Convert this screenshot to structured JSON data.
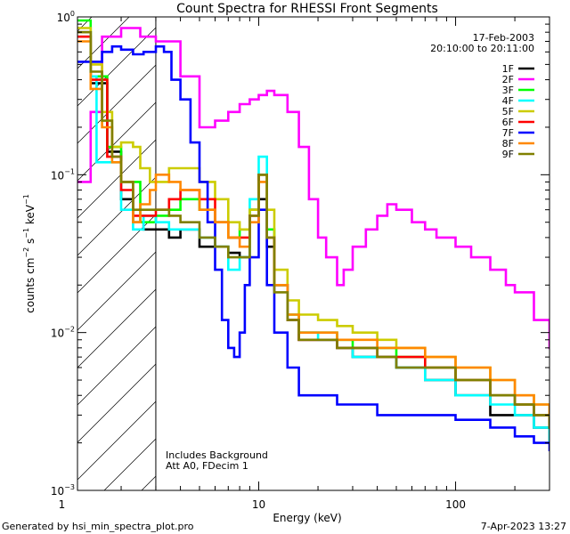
{
  "chart_data": {
    "type": "line",
    "title": "Count Spectra for RHESSI Front Segments",
    "xlabel": "Energy (keV)",
    "ylabel": "counts cm-2 s-1 keV-1",
    "ylabel_parts": {
      "base": "counts cm",
      "e1": "−2",
      "mid1": " s",
      "e2": "−1",
      "mid2": " keV",
      "e3": "−1"
    },
    "x_scale": "log",
    "y_scale": "log",
    "xlim": [
      1.2,
      300
    ],
    "ylim": [
      0.001,
      1.0
    ],
    "x_ticks": [
      {
        "value": 1,
        "label": "1"
      },
      {
        "value": 10,
        "label": "10"
      },
      {
        "value": 100,
        "label": "100"
      }
    ],
    "y_ticks": [
      {
        "value": 0.001,
        "base": "10",
        "exp": "−3"
      },
      {
        "value": 0.01,
        "base": "10",
        "exp": "−2"
      },
      {
        "value": 0.1,
        "base": "10",
        "exp": "−1"
      },
      {
        "value": 1,
        "base": "10",
        "exp": "0"
      }
    ],
    "date": "17-Feb-2003",
    "time_range": "20:10:00 to 20:11:00",
    "hatched_region": {
      "x_from": 1.2,
      "x_to": 3
    },
    "annotations": [
      "Includes Background",
      "Att A0, FDecim 1"
    ],
    "legend_position": "top-right",
    "series": [
      {
        "name": "1F",
        "color": "#000000",
        "points": [
          [
            1.2,
            0.8
          ],
          [
            1.4,
            0.38
          ],
          [
            1.7,
            0.14
          ],
          [
            2.0,
            0.07
          ],
          [
            2.3,
            0.05
          ],
          [
            2.6,
            0.045
          ],
          [
            3.0,
            0.045
          ],
          [
            3.5,
            0.04
          ],
          [
            4,
            0.045
          ],
          [
            5,
            0.035
          ],
          [
            6,
            0.035
          ],
          [
            7,
            0.032
          ],
          [
            8,
            0.03
          ],
          [
            9,
            0.06
          ],
          [
            10,
            0.07
          ],
          [
            11,
            0.035
          ],
          [
            12,
            0.02
          ],
          [
            14,
            0.012
          ],
          [
            16,
            0.009
          ],
          [
            20,
            0.009
          ],
          [
            25,
            0.008
          ],
          [
            30,
            0.007
          ],
          [
            40,
            0.007
          ],
          [
            50,
            0.006
          ],
          [
            70,
            0.005
          ],
          [
            100,
            0.004
          ],
          [
            150,
            0.003
          ],
          [
            200,
            0.003
          ],
          [
            250,
            0.0025
          ],
          [
            300,
            0.002
          ]
        ]
      },
      {
        "name": "2F",
        "color": "#ff00ff",
        "points": [
          [
            1.2,
            0.09
          ],
          [
            1.4,
            0.25
          ],
          [
            1.6,
            0.75
          ],
          [
            2,
            0.85
          ],
          [
            2.5,
            0.75
          ],
          [
            3,
            0.7
          ],
          [
            4,
            0.42
          ],
          [
            5,
            0.2
          ],
          [
            6,
            0.22
          ],
          [
            7,
            0.25
          ],
          [
            8,
            0.28
          ],
          [
            9,
            0.3
          ],
          [
            10,
            0.32
          ],
          [
            11,
            0.34
          ],
          [
            12,
            0.32
          ],
          [
            14,
            0.25
          ],
          [
            16,
            0.15
          ],
          [
            18,
            0.07
          ],
          [
            20,
            0.04
          ],
          [
            22,
            0.03
          ],
          [
            25,
            0.02
          ],
          [
            27,
            0.025
          ],
          [
            30,
            0.035
          ],
          [
            35,
            0.045
          ],
          [
            40,
            0.055
          ],
          [
            45,
            0.065
          ],
          [
            50,
            0.06
          ],
          [
            60,
            0.05
          ],
          [
            70,
            0.045
          ],
          [
            80,
            0.04
          ],
          [
            100,
            0.035
          ],
          [
            120,
            0.03
          ],
          [
            150,
            0.025
          ],
          [
            180,
            0.02
          ],
          [
            200,
            0.018
          ],
          [
            250,
            0.012
          ],
          [
            300,
            0.008
          ]
        ]
      },
      {
        "name": "3F",
        "color": "#00ff00",
        "points": [
          [
            1.2,
            0.95
          ],
          [
            1.4,
            0.42
          ],
          [
            1.7,
            0.15
          ],
          [
            2.0,
            0.09
          ],
          [
            2.5,
            0.05
          ],
          [
            3,
            0.055
          ],
          [
            3.5,
            0.06
          ],
          [
            4,
            0.07
          ],
          [
            5,
            0.06
          ],
          [
            6,
            0.05
          ],
          [
            7,
            0.04
          ],
          [
            8,
            0.045
          ],
          [
            9,
            0.06
          ],
          [
            10,
            0.1
          ],
          [
            11,
            0.045
          ],
          [
            12,
            0.02
          ],
          [
            14,
            0.013
          ],
          [
            16,
            0.01
          ],
          [
            20,
            0.01
          ],
          [
            25,
            0.009
          ],
          [
            30,
            0.008
          ],
          [
            40,
            0.008
          ],
          [
            50,
            0.007
          ],
          [
            70,
            0.006
          ],
          [
            100,
            0.005
          ],
          [
            150,
            0.004
          ],
          [
            200,
            0.0035
          ],
          [
            250,
            0.003
          ],
          [
            300,
            0.0025
          ]
        ]
      },
      {
        "name": "4F",
        "color": "#00ffff",
        "points": [
          [
            1.2,
            0.75
          ],
          [
            1.4,
            0.42
          ],
          [
            1.5,
            0.12
          ],
          [
            1.7,
            0.12
          ],
          [
            2.0,
            0.06
          ],
          [
            2.3,
            0.045
          ],
          [
            2.6,
            0.055
          ],
          [
            3,
            0.05
          ],
          [
            3.5,
            0.045
          ],
          [
            4,
            0.045
          ],
          [
            5,
            0.04
          ],
          [
            6,
            0.035
          ],
          [
            7,
            0.025
          ],
          [
            8,
            0.03
          ],
          [
            9,
            0.07
          ],
          [
            10,
            0.13
          ],
          [
            11,
            0.04
          ],
          [
            12,
            0.02
          ],
          [
            14,
            0.012
          ],
          [
            16,
            0.01
          ],
          [
            20,
            0.009
          ],
          [
            25,
            0.008
          ],
          [
            30,
            0.007
          ],
          [
            40,
            0.007
          ],
          [
            50,
            0.006
          ],
          [
            70,
            0.005
          ],
          [
            100,
            0.004
          ],
          [
            150,
            0.0035
          ],
          [
            200,
            0.003
          ],
          [
            250,
            0.0025
          ],
          [
            300,
            0.002
          ]
        ]
      },
      {
        "name": "5F",
        "color": "#cccc00",
        "points": [
          [
            1.2,
            0.85
          ],
          [
            1.4,
            0.5
          ],
          [
            1.6,
            0.25
          ],
          [
            1.8,
            0.15
          ],
          [
            2.0,
            0.16
          ],
          [
            2.3,
            0.15
          ],
          [
            2.5,
            0.11
          ],
          [
            2.8,
            0.09
          ],
          [
            3,
            0.09
          ],
          [
            3.5,
            0.11
          ],
          [
            4,
            0.11
          ],
          [
            5,
            0.09
          ],
          [
            6,
            0.07
          ],
          [
            7,
            0.05
          ],
          [
            8,
            0.045
          ],
          [
            9,
            0.06
          ],
          [
            10,
            0.1
          ],
          [
            11,
            0.06
          ],
          [
            12,
            0.025
          ],
          [
            14,
            0.016
          ],
          [
            16,
            0.013
          ],
          [
            20,
            0.012
          ],
          [
            25,
            0.011
          ],
          [
            30,
            0.01
          ],
          [
            40,
            0.009
          ],
          [
            50,
            0.008
          ],
          [
            70,
            0.007
          ],
          [
            100,
            0.006
          ],
          [
            150,
            0.005
          ],
          [
            200,
            0.004
          ],
          [
            250,
            0.0035
          ],
          [
            300,
            0.003
          ]
        ]
      },
      {
        "name": "6F",
        "color": "#ff0000",
        "points": [
          [
            1.2,
            0.75
          ],
          [
            1.4,
            0.4
          ],
          [
            1.7,
            0.13
          ],
          [
            2.0,
            0.08
          ],
          [
            2.3,
            0.055
          ],
          [
            2.6,
            0.055
          ],
          [
            3,
            0.06
          ],
          [
            3.5,
            0.07
          ],
          [
            4,
            0.08
          ],
          [
            5,
            0.07
          ],
          [
            6,
            0.05
          ],
          [
            7,
            0.04
          ],
          [
            8,
            0.04
          ],
          [
            9,
            0.055
          ],
          [
            10,
            0.1
          ],
          [
            11,
            0.04
          ],
          [
            12,
            0.02
          ],
          [
            14,
            0.012
          ],
          [
            16,
            0.009
          ],
          [
            20,
            0.009
          ],
          [
            25,
            0.008
          ],
          [
            30,
            0.008
          ],
          [
            40,
            0.007
          ],
          [
            50,
            0.007
          ],
          [
            70,
            0.006
          ],
          [
            100,
            0.005
          ],
          [
            150,
            0.004
          ],
          [
            200,
            0.0035
          ],
          [
            250,
            0.003
          ],
          [
            300,
            0.0025
          ]
        ]
      },
      {
        "name": "7F",
        "color": "#0000ff",
        "points": [
          [
            1.2,
            0.52
          ],
          [
            1.4,
            0.52
          ],
          [
            1.6,
            0.6
          ],
          [
            1.8,
            0.65
          ],
          [
            2.0,
            0.62
          ],
          [
            2.3,
            0.58
          ],
          [
            2.6,
            0.6
          ],
          [
            3,
            0.65
          ],
          [
            3.3,
            0.6
          ],
          [
            3.6,
            0.4
          ],
          [
            4,
            0.3
          ],
          [
            4.5,
            0.16
          ],
          [
            5,
            0.09
          ],
          [
            5.5,
            0.05
          ],
          [
            6,
            0.025
          ],
          [
            6.5,
            0.012
          ],
          [
            7,
            0.008
          ],
          [
            7.5,
            0.007
          ],
          [
            8,
            0.01
          ],
          [
            8.5,
            0.02
          ],
          [
            9,
            0.03
          ],
          [
            10,
            0.06
          ],
          [
            11,
            0.02
          ],
          [
            12,
            0.01
          ],
          [
            14,
            0.006
          ],
          [
            16,
            0.004
          ],
          [
            20,
            0.004
          ],
          [
            25,
            0.0035
          ],
          [
            30,
            0.0035
          ],
          [
            40,
            0.003
          ],
          [
            50,
            0.003
          ],
          [
            70,
            0.003
          ],
          [
            100,
            0.0028
          ],
          [
            150,
            0.0025
          ],
          [
            200,
            0.0022
          ],
          [
            250,
            0.002
          ],
          [
            300,
            0.0018
          ]
        ]
      },
      {
        "name": "8F",
        "color": "#ff8800",
        "points": [
          [
            1.2,
            0.7
          ],
          [
            1.4,
            0.35
          ],
          [
            1.6,
            0.2
          ],
          [
            1.8,
            0.12
          ],
          [
            2.0,
            0.09
          ],
          [
            2.3,
            0.05
          ],
          [
            2.5,
            0.065
          ],
          [
            2.8,
            0.08
          ],
          [
            3,
            0.1
          ],
          [
            3.5,
            0.09
          ],
          [
            4,
            0.08
          ],
          [
            5,
            0.06
          ],
          [
            6,
            0.05
          ],
          [
            7,
            0.04
          ],
          [
            8,
            0.035
          ],
          [
            9,
            0.05
          ],
          [
            10,
            0.09
          ],
          [
            11,
            0.04
          ],
          [
            12,
            0.02
          ],
          [
            14,
            0.013
          ],
          [
            16,
            0.01
          ],
          [
            20,
            0.01
          ],
          [
            25,
            0.009
          ],
          [
            30,
            0.009
          ],
          [
            40,
            0.008
          ],
          [
            50,
            0.008
          ],
          [
            70,
            0.007
          ],
          [
            100,
            0.006
          ],
          [
            150,
            0.005
          ],
          [
            200,
            0.004
          ],
          [
            250,
            0.0035
          ],
          [
            300,
            0.003
          ]
        ]
      },
      {
        "name": "9F",
        "color": "#808000",
        "points": [
          [
            1.2,
            0.8
          ],
          [
            1.4,
            0.45
          ],
          [
            1.6,
            0.22
          ],
          [
            1.8,
            0.13
          ],
          [
            2.0,
            0.09
          ],
          [
            2.3,
            0.06
          ],
          [
            2.6,
            0.06
          ],
          [
            3,
            0.06
          ],
          [
            3.5,
            0.055
          ],
          [
            4,
            0.05
          ],
          [
            5,
            0.04
          ],
          [
            6,
            0.035
          ],
          [
            7,
            0.03
          ],
          [
            8,
            0.03
          ],
          [
            9,
            0.055
          ],
          [
            10,
            0.1
          ],
          [
            11,
            0.04
          ],
          [
            12,
            0.018
          ],
          [
            14,
            0.012
          ],
          [
            16,
            0.009
          ],
          [
            20,
            0.009
          ],
          [
            25,
            0.008
          ],
          [
            30,
            0.008
          ],
          [
            40,
            0.007
          ],
          [
            50,
            0.006
          ],
          [
            70,
            0.006
          ],
          [
            100,
            0.005
          ],
          [
            150,
            0.004
          ],
          [
            200,
            0.0035
          ],
          [
            250,
            0.003
          ],
          [
            300,
            0.0025
          ]
        ]
      }
    ]
  },
  "footer": {
    "generated_by": "Generated by hsi_min_spectra_plot.pro",
    "timestamp": "7-Apr-2023 13:27"
  }
}
